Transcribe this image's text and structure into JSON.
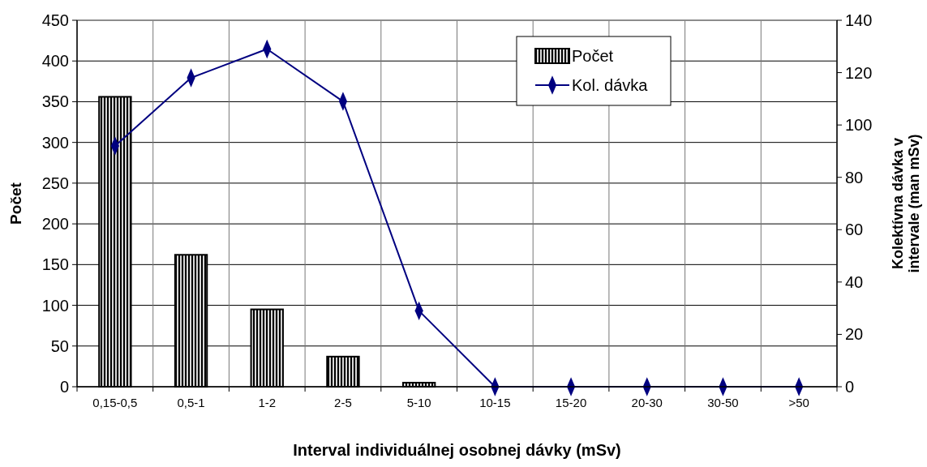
{
  "chart_data": {
    "type": "bar",
    "xlabel": "Interval individuálnej osobnej dávky (mSv)",
    "ylabel": "Počet",
    "y2label": "Kolektívna dávka v intervale (man mSv)",
    "categories": [
      "0,15-0,5",
      "0,5-1",
      "1-2",
      "2-5",
      "5-10",
      "10-15",
      "15-20",
      "20-30",
      "30-50",
      ">50"
    ],
    "series": [
      {
        "name": "Počet",
        "color": "#000000",
        "values": [
          356,
          162,
          95,
          37,
          5,
          0,
          0,
          0,
          0,
          0
        ]
      },
      {
        "name": "Kol. dávka",
        "type": "line",
        "axis": "y2",
        "color": "#000080",
        "marker": "diamond",
        "values": [
          92,
          118,
          129,
          109,
          29,
          0,
          0,
          0,
          0,
          0
        ]
      }
    ],
    "ylim": [
      0,
      450
    ],
    "yticks": [
      0,
      50,
      100,
      150,
      200,
      250,
      300,
      350,
      400,
      450
    ],
    "y2lim": [
      0,
      140
    ],
    "y2ticks": [
      0,
      20,
      40,
      60,
      80,
      100,
      120,
      140
    ],
    "grid": true,
    "legend": "top right"
  }
}
